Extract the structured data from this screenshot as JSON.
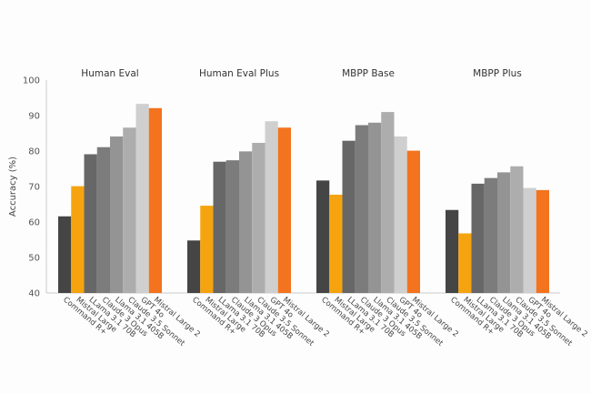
{
  "chart_data": {
    "type": "bar",
    "ylabel": "Accuracy (%)",
    "xlabel": "",
    "ylim": [
      40,
      100
    ],
    "yticks": [
      "40",
      "50",
      "60",
      "70",
      "80",
      "90",
      "100"
    ],
    "grid": false,
    "legend": "none",
    "categories": [
      "Command R+",
      "Mistral Large",
      "LLama 3.1 70B",
      "Claude 3 Opus",
      "Llama 3.1 405B",
      "Claude 3.5 Sonnet",
      "GPT 4o",
      "Mistral Large 2"
    ],
    "colors": [
      "#454545",
      "#f5a410",
      "#676767",
      "#7c7c7c",
      "#949494",
      "#adadad",
      "#cfcfcf",
      "#f4731f"
    ],
    "panels": [
      {
        "title": "Human Eval",
        "values": [
          61.6,
          70.1,
          79.1,
          81.1,
          84.1,
          86.6,
          93.3,
          92.1
        ]
      },
      {
        "title": "Human Eval Plus",
        "values": [
          54.8,
          64.6,
          77.0,
          77.4,
          79.9,
          82.3,
          88.4,
          86.6
        ]
      },
      {
        "title": "MBPP Base",
        "values": [
          71.7,
          67.7,
          82.9,
          87.3,
          88.0,
          91.0,
          84.1,
          80.1
        ]
      },
      {
        "title": "MBPP Plus",
        "values": [
          63.4,
          56.8,
          70.8,
          72.4,
          74.0,
          75.7,
          69.6,
          69.0
        ]
      }
    ]
  }
}
